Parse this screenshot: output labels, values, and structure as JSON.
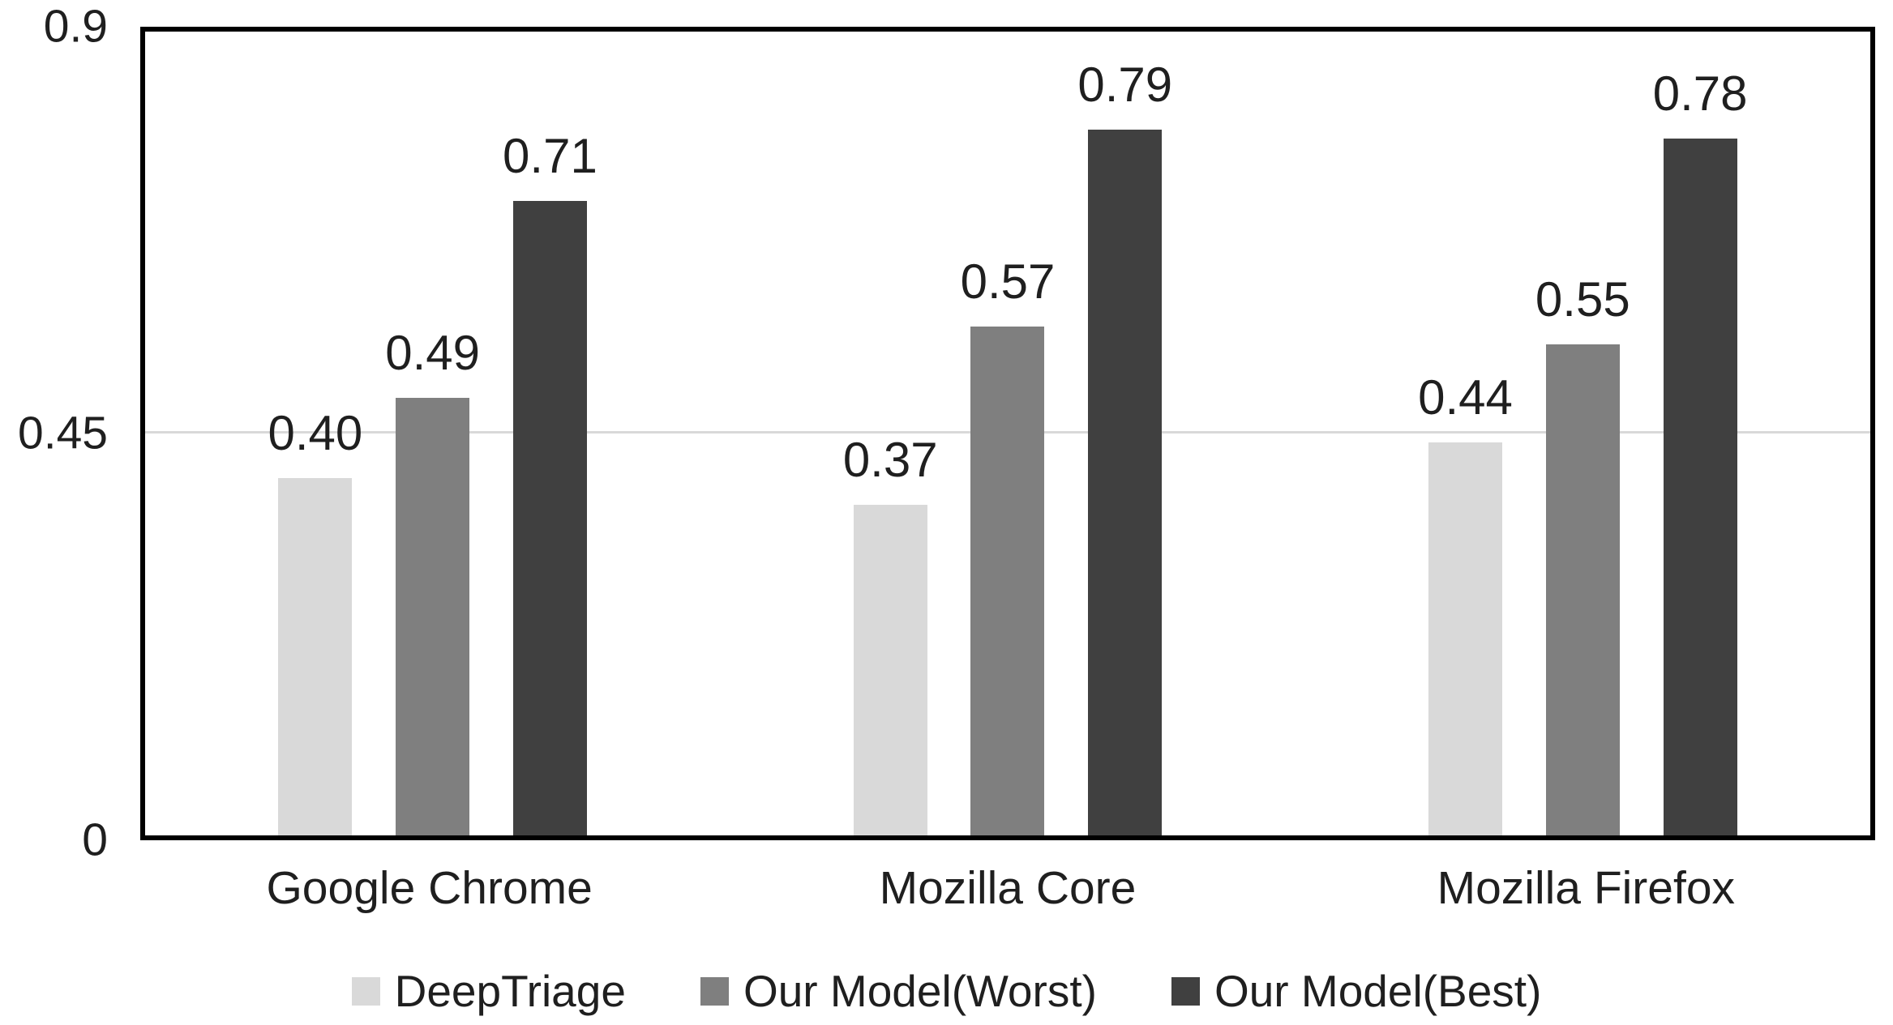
{
  "chart_data": {
    "type": "bar",
    "title": "",
    "xlabel": "",
    "ylabel": "",
    "categories": [
      "Google Chrome",
      "Mozilla Core",
      "Mozilla Firefox"
    ],
    "series": [
      {
        "name": "DeepTriage",
        "color": "#d9d9d9",
        "values": [
          0.4,
          0.37,
          0.44
        ],
        "labels": [
          "0.40",
          "0.37",
          "0.44"
        ]
      },
      {
        "name": "Our Model(Worst)",
        "color": "#7f7f7f",
        "values": [
          0.49,
          0.57,
          0.55
        ],
        "labels": [
          "0.49",
          "0.57",
          "0.55"
        ]
      },
      {
        "name": "Our Model(Best)",
        "color": "#404040",
        "values": [
          0.71,
          0.79,
          0.78
        ],
        "labels": [
          "0.71",
          "0.79",
          "0.78"
        ]
      }
    ],
    "ylim": [
      0,
      0.9
    ],
    "yticks": [
      {
        "value": 0,
        "label": "0"
      },
      {
        "value": 0.45,
        "label": "0.45"
      },
      {
        "value": 0.9,
        "label": "0.9"
      }
    ],
    "gridline_values": [
      0.45
    ],
    "grid": "single light horizontal gridline at 0.45",
    "legend_position": "bottom-center"
  },
  "style": {
    "plot_border_color": "#000000",
    "gridline_color": "#d9d9d9",
    "text_color": "#1f1f1f",
    "background_color": "#ffffff",
    "series_colors": [
      "#d9d9d9",
      "#7f7f7f",
      "#404040"
    ]
  }
}
